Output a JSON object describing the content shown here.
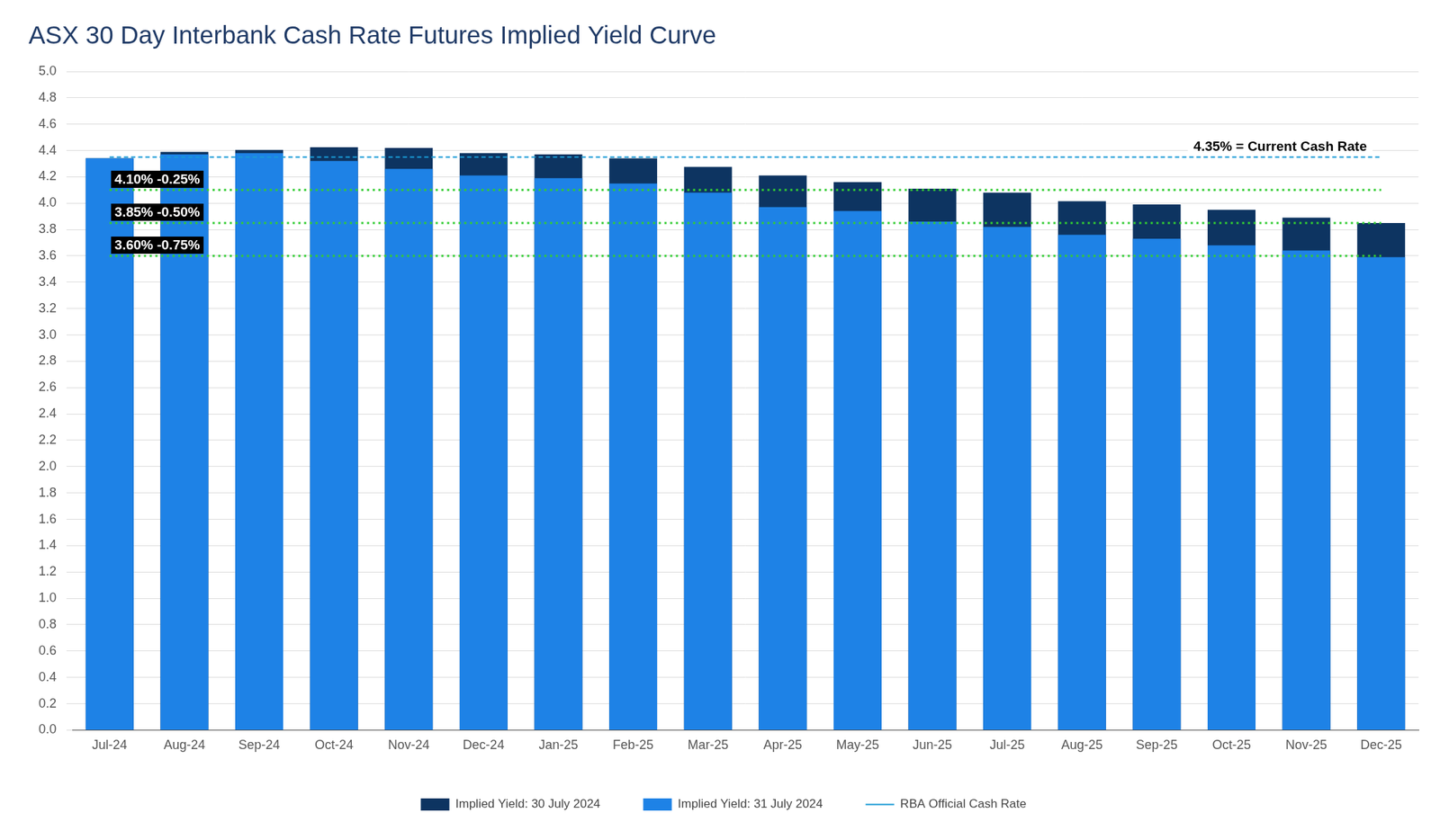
{
  "chart_data": {
    "type": "bar",
    "title": "ASX 30 Day Interbank Cash Rate Futures Implied Yield Curve",
    "categories": [
      "Jul-24",
      "Aug-24",
      "Sep-24",
      "Oct-24",
      "Nov-24",
      "Dec-24",
      "Jan-25",
      "Feb-25",
      "Mar-25",
      "Apr-25",
      "May-25",
      "Jun-25",
      "Jul-25",
      "Aug-25",
      "Sep-25",
      "Oct-25",
      "Nov-25",
      "Dec-25"
    ],
    "series": [
      {
        "name": "Implied Yield: 30 July 2024",
        "color": "#0d3461",
        "type": "bar",
        "values": [
          4.34,
          4.39,
          4.405,
          4.425,
          4.42,
          4.38,
          4.37,
          4.34,
          4.275,
          4.21,
          4.16,
          4.11,
          4.08,
          4.015,
          3.99,
          3.95,
          3.89,
          3.85
        ]
      },
      {
        "name": "Implied Yield: 31 July 2024",
        "color": "#1e82e6",
        "type": "bar",
        "values": [
          4.34,
          4.37,
          4.38,
          4.32,
          4.26,
          4.21,
          4.19,
          4.15,
          4.08,
          3.97,
          3.94,
          3.86,
          3.82,
          3.76,
          3.73,
          3.68,
          3.64,
          3.59
        ]
      },
      {
        "name": "RBA Official Cash Rate",
        "color": "#1a9ad6",
        "type": "line",
        "line_style": "dashed",
        "values": [
          4.35,
          4.35,
          4.35,
          4.35,
          4.35,
          4.35,
          4.35,
          4.35,
          4.35,
          4.35,
          4.35,
          4.35,
          4.35,
          4.35,
          4.35,
          4.35,
          4.35,
          4.35
        ]
      }
    ],
    "annotations": [
      {
        "value": 4.35,
        "label": "4.35% = Current Cash Rate"
      },
      {
        "value": 4.1,
        "label": "4.10% -0.25%",
        "color": "#33cc33",
        "line_style": "dotted"
      },
      {
        "value": 3.85,
        "label": "3.85% -0.50%",
        "color": "#33cc33",
        "line_style": "dotted"
      },
      {
        "value": 3.6,
        "label": "3.60% -0.75%",
        "color": "#33cc33",
        "line_style": "dotted"
      }
    ],
    "ylim": [
      0,
      5
    ],
    "yticks": [
      {
        "value": 0,
        "label": "0.0"
      },
      {
        "value": 0.2,
        "label": "0.2"
      },
      {
        "value": 0.4,
        "label": "0.4"
      },
      {
        "value": 0.6,
        "label": "0.6"
      },
      {
        "value": 0.8,
        "label": "0.8"
      },
      {
        "value": 1,
        "label": "1.0"
      },
      {
        "value": 1.2,
        "label": "1.2"
      },
      {
        "value": 1.4,
        "label": "1.4"
      },
      {
        "value": 1.6,
        "label": "1.6"
      },
      {
        "value": 1.8,
        "label": "1.8"
      },
      {
        "value": 2,
        "label": "2.0"
      },
      {
        "value": 2.2,
        "label": "2.2"
      },
      {
        "value": 2.4,
        "label": "2.4"
      },
      {
        "value": 2.6,
        "label": "2.6"
      },
      {
        "value": 2.8,
        "label": "2.8"
      },
      {
        "value": 3,
        "label": "3.0"
      },
      {
        "value": 3.2,
        "label": "3.2"
      },
      {
        "value": 3.4,
        "label": "3.4"
      },
      {
        "value": 3.6,
        "label": "3.6"
      },
      {
        "value": 3.8,
        "label": "3.8"
      },
      {
        "value": 4,
        "label": "4.0"
      },
      {
        "value": 4.2,
        "label": "4.2"
      },
      {
        "value": 4.4,
        "label": "4.4"
      },
      {
        "value": 4.6,
        "label": "4.6"
      },
      {
        "value": 4.8,
        "label": "4.8"
      },
      {
        "value": 5,
        "label": "5.0"
      }
    ],
    "grid": true,
    "legend": "bottom"
  }
}
